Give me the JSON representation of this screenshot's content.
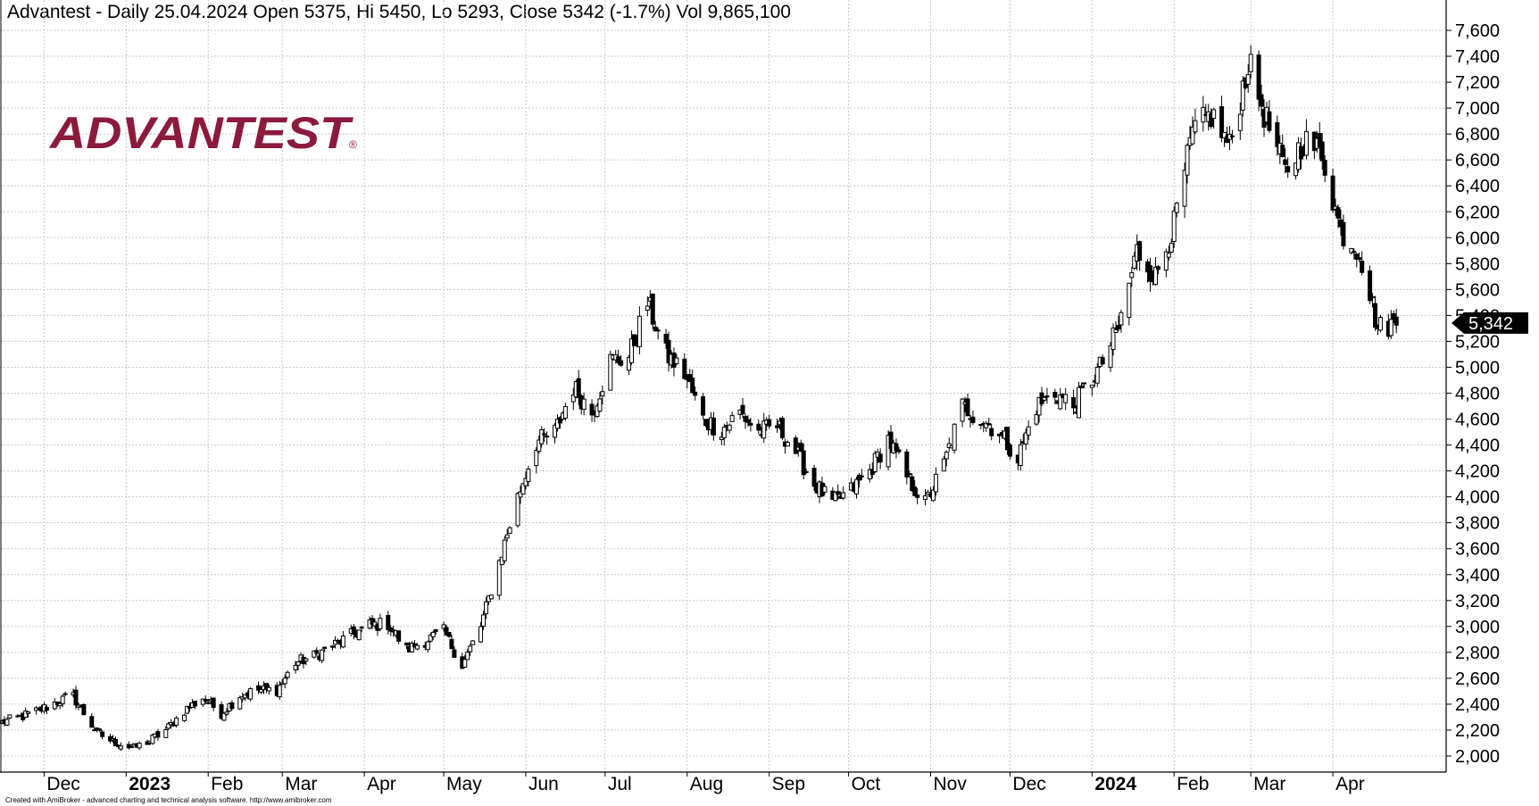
{
  "header": {
    "title": "Advantest - Daily 25.04.2024 Open 5375, Hi 5450, Lo 5293, Close 5342 (-1.7%) Vol 9,865,100"
  },
  "logo": {
    "text": "ADVANTEST",
    "mark": "®",
    "color": "#8b1a3c"
  },
  "footer": {
    "note": "Created with AmiBroker - advanced charting and technical analysis software. http://www.amibroker.com"
  },
  "colors": {
    "up_fill": "#ffffff",
    "down_fill": "#000000",
    "outline": "#000000",
    "grid": "#c8c8c8",
    "badge_bg": "#000000",
    "badge_text": "#ffffff"
  },
  "chart_data": {
    "type": "candlestick",
    "ylim": [
      1900,
      7700
    ],
    "yticks": [
      2000,
      2200,
      2400,
      2600,
      2800,
      3000,
      3200,
      3400,
      3600,
      3800,
      4000,
      4200,
      4400,
      4600,
      4800,
      5000,
      5200,
      5400,
      5600,
      5800,
      6000,
      6200,
      6400,
      6600,
      6800,
      7000,
      7200,
      7400,
      7600
    ],
    "ytick_labels": [
      "2,000",
      "2,200",
      "2,400",
      "2,600",
      "2,800",
      "3,000",
      "3,200",
      "3,400",
      "3,600",
      "3,800",
      "4,000",
      "4,200",
      "4,400",
      "4,600",
      "4,800",
      "5,000",
      "5,200",
      "5,400",
      "5,600",
      "5,800",
      "6,000",
      "6,200",
      "6,400",
      "6,600",
      "6,800",
      "7,000",
      "7,200",
      "7,400",
      "7,600"
    ],
    "x_start": "2022-11-15",
    "x_end": "2024-05-01",
    "month_labels": [
      {
        "date": "2022-12-01",
        "label": "Dec",
        "bold": false
      },
      {
        "date": "2023-01-01",
        "label": "2023",
        "bold": true
      },
      {
        "date": "2023-02-01",
        "label": "Feb",
        "bold": false
      },
      {
        "date": "2023-03-01",
        "label": "Mar",
        "bold": false
      },
      {
        "date": "2023-04-01",
        "label": "Apr",
        "bold": false
      },
      {
        "date": "2023-05-01",
        "label": "May",
        "bold": false
      },
      {
        "date": "2023-06-01",
        "label": "Jun",
        "bold": false
      },
      {
        "date": "2023-07-01",
        "label": "Jul",
        "bold": false
      },
      {
        "date": "2023-08-01",
        "label": "Aug",
        "bold": false
      },
      {
        "date": "2023-09-01",
        "label": "Sep",
        "bold": false
      },
      {
        "date": "2023-10-01",
        "label": "Oct",
        "bold": false
      },
      {
        "date": "2023-11-01",
        "label": "Nov",
        "bold": false
      },
      {
        "date": "2023-12-01",
        "label": "Dec",
        "bold": false
      },
      {
        "date": "2024-01-01",
        "label": "2024",
        "bold": true
      },
      {
        "date": "2024-02-01",
        "label": "Feb",
        "bold": false
      },
      {
        "date": "2024-03-01",
        "label": "Mar",
        "bold": false
      },
      {
        "date": "2024-04-01",
        "label": "Apr",
        "bold": false
      }
    ],
    "last_close_label": "5,342",
    "last_close": 5342,
    "closes": [
      {
        "date": "2022-11-15",
        "close": 2260
      },
      {
        "date": "2022-11-22",
        "close": 2300
      },
      {
        "date": "2022-11-30",
        "close": 2360
      },
      {
        "date": "2022-12-07",
        "close": 2430
      },
      {
        "date": "2022-12-12",
        "close": 2460
      },
      {
        "date": "2022-12-16",
        "close": 2330
      },
      {
        "date": "2022-12-21",
        "close": 2180
      },
      {
        "date": "2022-12-27",
        "close": 2110
      },
      {
        "date": "2023-01-04",
        "close": 2060
      },
      {
        "date": "2023-01-10",
        "close": 2120
      },
      {
        "date": "2023-01-16",
        "close": 2200
      },
      {
        "date": "2023-01-23",
        "close": 2350
      },
      {
        "date": "2023-01-30",
        "close": 2450
      },
      {
        "date": "2023-02-06",
        "close": 2330
      },
      {
        "date": "2023-02-13",
        "close": 2470
      },
      {
        "date": "2023-02-20",
        "close": 2510
      },
      {
        "date": "2023-02-27",
        "close": 2510
      },
      {
        "date": "2023-03-06",
        "close": 2720
      },
      {
        "date": "2023-03-13",
        "close": 2770
      },
      {
        "date": "2023-03-20",
        "close": 2850
      },
      {
        "date": "2023-03-27",
        "close": 2930
      },
      {
        "date": "2023-04-03",
        "close": 3010
      },
      {
        "date": "2023-04-10",
        "close": 3020
      },
      {
        "date": "2023-04-17",
        "close": 2820
      },
      {
        "date": "2023-04-24",
        "close": 2890
      },
      {
        "date": "2023-05-01",
        "close": 2960
      },
      {
        "date": "2023-05-08",
        "close": 2700
      },
      {
        "date": "2023-05-15",
        "close": 3000
      },
      {
        "date": "2023-05-22",
        "close": 3500
      },
      {
        "date": "2023-05-29",
        "close": 4000
      },
      {
        "date": "2023-06-05",
        "close": 4420
      },
      {
        "date": "2023-06-12",
        "close": 4500
      },
      {
        "date": "2023-06-19",
        "close": 4850
      },
      {
        "date": "2023-06-26",
        "close": 4650
      },
      {
        "date": "2023-07-03",
        "close": 5050
      },
      {
        "date": "2023-07-10",
        "close": 5080
      },
      {
        "date": "2023-07-17",
        "close": 5500
      },
      {
        "date": "2023-07-24",
        "close": 5100
      },
      {
        "date": "2023-07-31",
        "close": 4950
      },
      {
        "date": "2023-08-07",
        "close": 4600
      },
      {
        "date": "2023-08-14",
        "close": 4520
      },
      {
        "date": "2023-08-21",
        "close": 4650
      },
      {
        "date": "2023-08-28",
        "close": 4500
      },
      {
        "date": "2023-09-04",
        "close": 4550
      },
      {
        "date": "2023-09-11",
        "close": 4350
      },
      {
        "date": "2023-09-18",
        "close": 4100
      },
      {
        "date": "2023-09-25",
        "close": 3950
      },
      {
        "date": "2023-10-02",
        "close": 4050
      },
      {
        "date": "2023-10-09",
        "close": 4200
      },
      {
        "date": "2023-10-16",
        "close": 4450
      },
      {
        "date": "2023-10-23",
        "close": 4150
      },
      {
        "date": "2023-10-30",
        "close": 3950
      },
      {
        "date": "2023-11-06",
        "close": 4250
      },
      {
        "date": "2023-11-13",
        "close": 4700
      },
      {
        "date": "2023-11-20",
        "close": 4600
      },
      {
        "date": "2023-11-27",
        "close": 4500
      },
      {
        "date": "2023-12-04",
        "close": 4300
      },
      {
        "date": "2023-12-11",
        "close": 4700
      },
      {
        "date": "2023-12-18",
        "close": 4800
      },
      {
        "date": "2023-12-25",
        "close": 4700
      },
      {
        "date": "2024-01-04",
        "close": 5000
      },
      {
        "date": "2024-01-11",
        "close": 5300
      },
      {
        "date": "2024-01-18",
        "close": 5900
      },
      {
        "date": "2024-01-25",
        "close": 5700
      },
      {
        "date": "2024-02-01",
        "close": 6100
      },
      {
        "date": "2024-02-08",
        "close": 6800
      },
      {
        "date": "2024-02-15",
        "close": 6950
      },
      {
        "date": "2024-02-22",
        "close": 6700
      },
      {
        "date": "2024-02-29",
        "close": 7350
      },
      {
        "date": "2024-03-07",
        "close": 6900
      },
      {
        "date": "2024-03-14",
        "close": 6500
      },
      {
        "date": "2024-03-21",
        "close": 6750
      },
      {
        "date": "2024-03-28",
        "close": 6650
      },
      {
        "date": "2024-04-04",
        "close": 6050
      },
      {
        "date": "2024-04-11",
        "close": 5900
      },
      {
        "date": "2024-04-18",
        "close": 5300
      },
      {
        "date": "2024-04-25",
        "close": 5342
      }
    ]
  }
}
